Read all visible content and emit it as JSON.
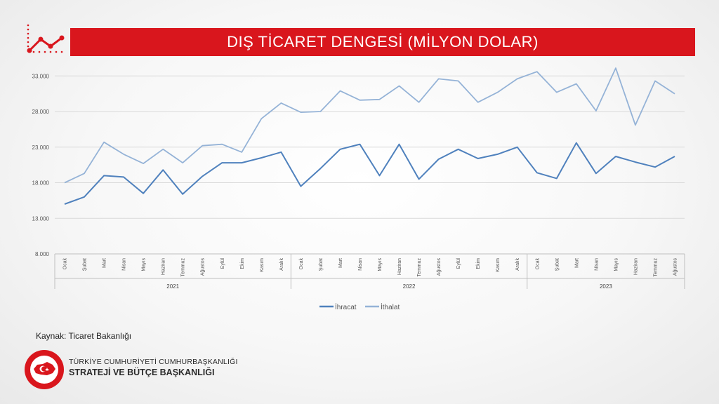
{
  "header": {
    "title": "DIŞ TİCARET DENGESİ (MİLYON DOLAR)"
  },
  "source": {
    "text": "Kaynak: Ticaret Bakanlığı"
  },
  "logo": {
    "line1": "TÜRKİYE CUMHURİYETİ CUMHURBAŞKANLIĞI",
    "line2": "STRATEJİ VE BÜTÇE BAŞKANLIĞI"
  },
  "colors": {
    "title_bar": "#d9161d",
    "ihracat": "#4f81bd",
    "ithalat": "#95b3d7"
  },
  "chart_data": {
    "type": "line",
    "title": "DIŞ TİCARET DENGESİ (MİLYON DOLAR)",
    "ylim": [
      8000,
      35000
    ],
    "yticks": [
      8000,
      13000,
      18000,
      23000,
      28000,
      33000
    ],
    "ytick_labels": [
      "8.000",
      "13.000",
      "18.000",
      "23.000",
      "28.000",
      "33.000"
    ],
    "grid": true,
    "legend_position": "bottom",
    "years": [
      {
        "label": "2021",
        "months": 12
      },
      {
        "label": "2022",
        "months": 12
      },
      {
        "label": "2023",
        "months": 8
      }
    ],
    "categories": [
      "Ocak",
      "Şubat",
      "Mart",
      "Nisan",
      "Mayıs",
      "Haziran",
      "Temmuz",
      "Ağustos",
      "Eylül",
      "Ekim",
      "Kasım",
      "Aralık",
      "Ocak",
      "Şubat",
      "Mart",
      "Nisan",
      "Mayıs",
      "Haziran",
      "Temmuz",
      "Ağustos",
      "Eylül",
      "Ekim",
      "Kasım",
      "Aralık",
      "Ocak",
      "Şubat",
      "Mart",
      "Nisan",
      "Mayıs",
      "Haziran",
      "Temmuz",
      "Ağustos"
    ],
    "series": [
      {
        "name": "İhracat",
        "values": [
          15000,
          16000,
          19000,
          18800,
          16500,
          19800,
          16400,
          18900,
          20800,
          20800,
          21500,
          22300,
          17500,
          20000,
          22700,
          23400,
          19000,
          23400,
          18500,
          21300,
          22700,
          21400,
          22000,
          23000,
          19400,
          18600,
          23600,
          19300,
          21700,
          20900,
          20200,
          21700
        ]
      },
      {
        "name": "İthalat",
        "values": [
          18000,
          19300,
          23700,
          22000,
          20700,
          22700,
          20800,
          23200,
          23400,
          22300,
          27000,
          29200,
          27900,
          28000,
          30900,
          29600,
          29700,
          31600,
          29300,
          32600,
          32300,
          29300,
          30700,
          32600,
          33600,
          30700,
          31900,
          28100,
          34100,
          26100,
          32300,
          30500
        ]
      }
    ]
  }
}
